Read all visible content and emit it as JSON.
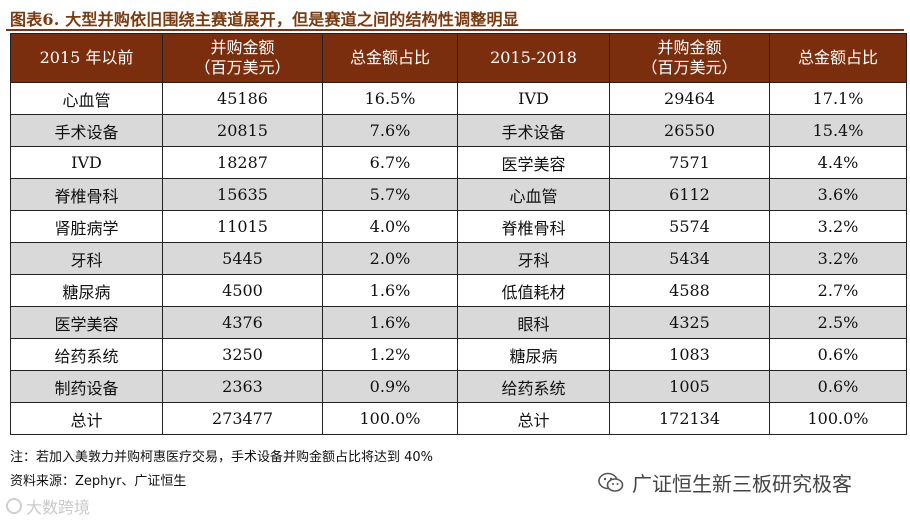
{
  "title": "图表6. 大型并购依旧围绕主赛道展开，但是赛道之间的结构性调整明显",
  "headers": {
    "left_period": "2015 年以前",
    "left_amount_line1": "并购金额",
    "left_amount_line2": "（百万美元）",
    "left_share": "总金额占比",
    "right_period": "2015-2018",
    "right_amount_line1": "并购金额",
    "right_amount_line2": "（百万美元）",
    "right_share": "总金额占比"
  },
  "rows": [
    {
      "l_cat": "心血管",
      "l_amt": "45186",
      "l_pct": "16.5%",
      "r_cat": "IVD",
      "r_amt": "29464",
      "r_pct": "17.1%",
      "shade": false
    },
    {
      "l_cat": "手术设备",
      "l_amt": "20815",
      "l_pct": "7.6%",
      "r_cat": "手术设备",
      "r_amt": "26550",
      "r_pct": "15.4%",
      "shade": true
    },
    {
      "l_cat": "IVD",
      "l_amt": "18287",
      "l_pct": "6.7%",
      "r_cat": "医学美容",
      "r_amt": "7571",
      "r_pct": "4.4%",
      "shade": false
    },
    {
      "l_cat": "脊椎骨科",
      "l_amt": "15635",
      "l_pct": "5.7%",
      "r_cat": "心血管",
      "r_amt": "6112",
      "r_pct": "3.6%",
      "shade": true
    },
    {
      "l_cat": "肾脏病学",
      "l_amt": "11015",
      "l_pct": "4.0%",
      "r_cat": "脊椎骨科",
      "r_amt": "5574",
      "r_pct": "3.2%",
      "shade": false
    },
    {
      "l_cat": "牙科",
      "l_amt": "5445",
      "l_pct": "2.0%",
      "r_cat": "牙科",
      "r_amt": "5434",
      "r_pct": "3.2%",
      "shade": true
    },
    {
      "l_cat": "糖尿病",
      "l_amt": "4500",
      "l_pct": "1.6%",
      "r_cat": "低值耗材",
      "r_amt": "4588",
      "r_pct": "2.7%",
      "shade": false
    },
    {
      "l_cat": "医学美容",
      "l_amt": "4376",
      "l_pct": "1.6%",
      "r_cat": "眼科",
      "r_amt": "4325",
      "r_pct": "2.5%",
      "shade": true
    },
    {
      "l_cat": "给药系统",
      "l_amt": "3250",
      "l_pct": "1.2%",
      "r_cat": "糖尿病",
      "r_amt": "1083",
      "r_pct": "0.6%",
      "shade": false
    },
    {
      "l_cat": "制药设备",
      "l_amt": "2363",
      "l_pct": "0.9%",
      "r_cat": "给药系统",
      "r_amt": "1005",
      "r_pct": "0.6%",
      "shade": true
    },
    {
      "l_cat": "总计",
      "l_amt": "273477",
      "l_pct": "100.0%",
      "r_cat": "总计",
      "r_amt": "172134",
      "r_pct": "100.0%",
      "shade": false
    }
  ],
  "footer": {
    "note": "注：若加入美敦力并购柯惠医疗交易，手术设备并购金额占比将达到 40%",
    "source": "资料来源：Zephyr、广证恒生"
  },
  "watermark": {
    "brand": "广证恒生新三板研究极客",
    "icon": "wechat-icon",
    "corner_text": "大数跨境"
  },
  "colors": {
    "header_bg": "#7b2e0e",
    "title": "#7a3a10",
    "shade": "#d9d9d9"
  }
}
